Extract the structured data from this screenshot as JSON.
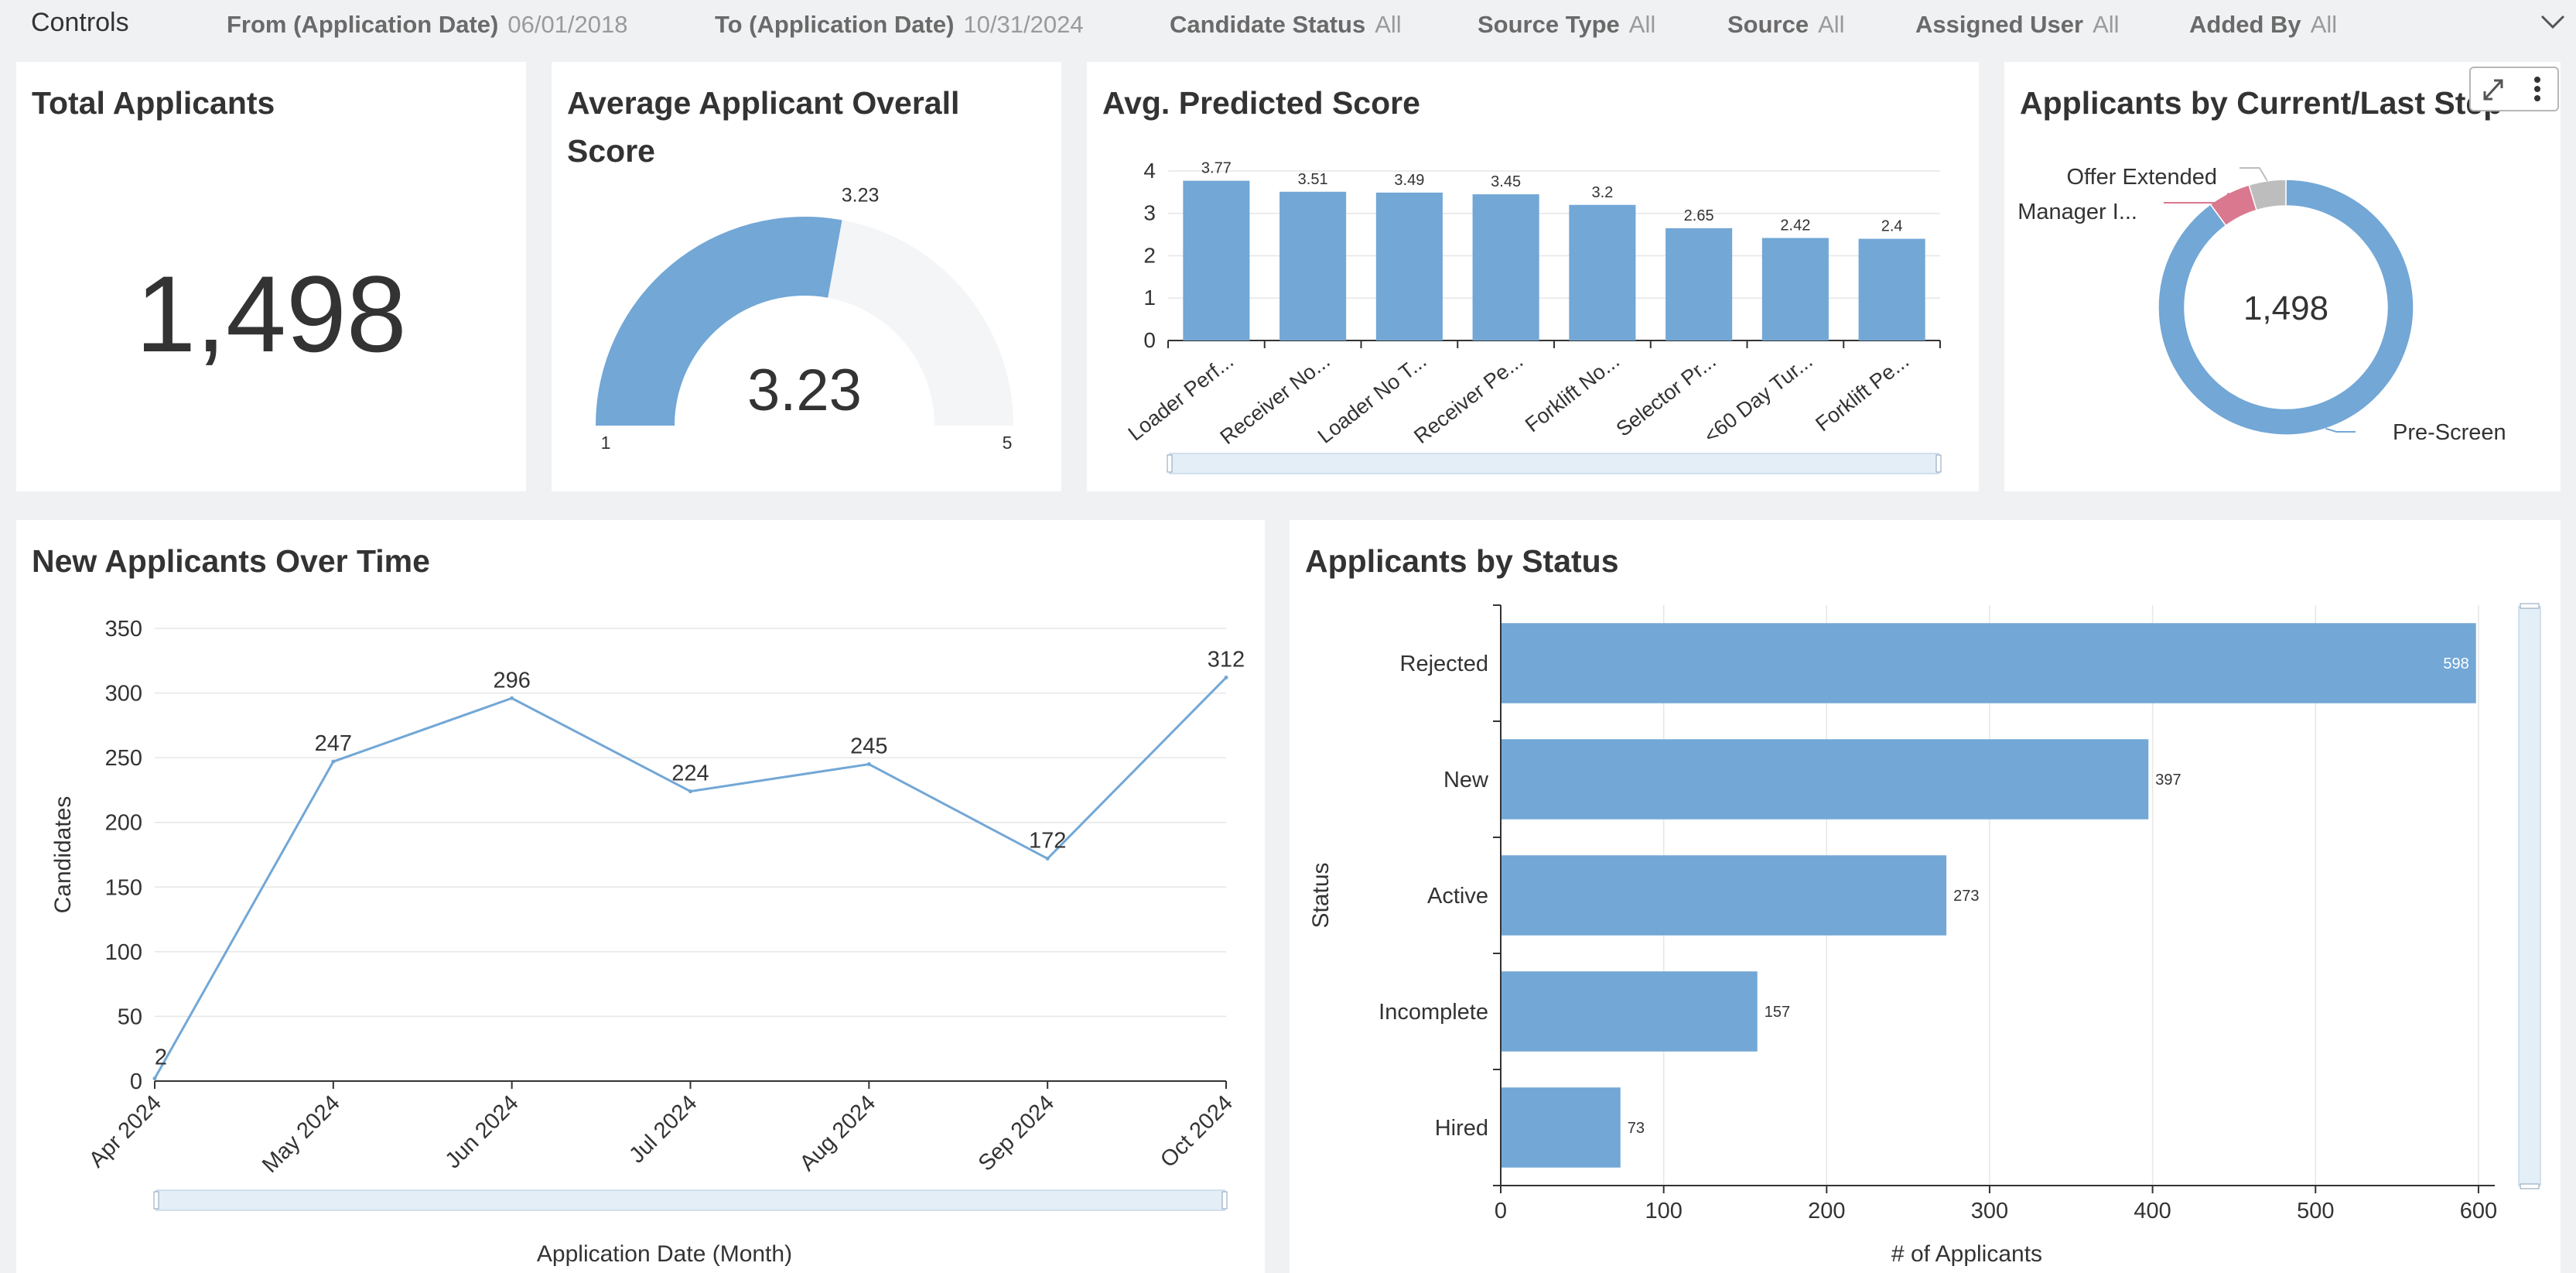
{
  "controls": {
    "title": "Controls",
    "filters": [
      {
        "label": "From (Application Date)",
        "value": "06/01/2018"
      },
      {
        "label": "To (Application Date)",
        "value": "10/31/2024"
      },
      {
        "label": "Candidate Status",
        "value": "All"
      },
      {
        "label": "Source Type",
        "value": "All"
      },
      {
        "label": "Source",
        "value": "All"
      },
      {
        "label": "Assigned User",
        "value": "All"
      },
      {
        "label": "Added By",
        "value": "All"
      }
    ],
    "collapse_icon": "chevron-down-icon"
  },
  "total_applicants": {
    "title": "Total Applicants",
    "value": "1,498"
  },
  "avg_overall_score": {
    "title_line1": "Average Applicant Overall",
    "title_line2": "Score",
    "value": "3.23",
    "min_label": "1",
    "max_label": "5",
    "chart_data": {
      "type": "gauge",
      "value": 3.23,
      "min": 1,
      "max": 5,
      "color": "#72a7d6"
    }
  },
  "avg_predicted": {
    "title": "Avg. Predicted Score",
    "chart_data": {
      "type": "bar",
      "categories": [
        "Loader Perf...",
        "Receiver No...",
        "Loader No T...",
        "Receiver Pe...",
        "Forklift No...",
        "Selector Pr...",
        "<60 Day Tur...",
        "Forklift Pe..."
      ],
      "values": [
        3.77,
        3.51,
        3.49,
        3.45,
        3.2,
        2.65,
        2.42,
        2.4
      ],
      "value_labels": [
        "3.77",
        "3.51",
        "3.49",
        "3.45",
        "3.2",
        "2.65",
        "2.42",
        "2.4"
      ],
      "yticks": [
        "0",
        "1",
        "2",
        "3",
        "4"
      ],
      "ylim": [
        0,
        4.2
      ],
      "color": "#72a7d6",
      "grid": true
    }
  },
  "by_step": {
    "title": "Applicants by Current/Last Step",
    "center_value": "1,498",
    "chart_data": {
      "type": "pie",
      "donut": true,
      "slices": [
        {
          "label": "Pre-Screen",
          "value": 1347,
          "color": "#72a7d6"
        },
        {
          "label": "Manager I...",
          "value": 81,
          "color": "#d9788e"
        },
        {
          "label": "Offer Extended",
          "value": 70,
          "color": "#bdbdbd"
        }
      ]
    },
    "toolbar_icons": [
      "expand-icon",
      "more-vertical-icon"
    ]
  },
  "over_time": {
    "title": "New Applicants Over Time",
    "chart_data": {
      "type": "line",
      "x": [
        "Apr 2024",
        "May 2024",
        "Jun 2024",
        "Jul 2024",
        "Aug 2024",
        "Sep 2024",
        "Oct 2024"
      ],
      "y": [
        2,
        247,
        296,
        224,
        245,
        172,
        312
      ],
      "y_labels": [
        "2",
        "247",
        "296",
        "224",
        "245",
        "172",
        "312"
      ],
      "yticks": [
        "0",
        "50",
        "100",
        "150",
        "200",
        "250",
        "300",
        "350"
      ],
      "ylim": [
        0,
        350
      ],
      "xlabel": "Application Date (Month)",
      "ylabel": "Candidates",
      "color": "#72a7d6",
      "grid": true
    }
  },
  "by_status": {
    "title": "Applicants by Status",
    "chart_data": {
      "type": "bar",
      "orientation": "horizontal",
      "categories": [
        "Rejected",
        "New",
        "Active",
        "Incomplete",
        "Hired"
      ],
      "values": [
        598,
        397,
        273,
        157,
        73
      ],
      "value_labels": [
        "598",
        "397",
        "273",
        "157",
        "73"
      ],
      "xticks": [
        "0",
        "100",
        "200",
        "300",
        "400",
        "500",
        "600"
      ],
      "xlim": [
        0,
        610
      ],
      "xlabel": "# of Applicants",
      "ylabel": "Status",
      "color": "#72a7d6",
      "grid": true
    }
  }
}
